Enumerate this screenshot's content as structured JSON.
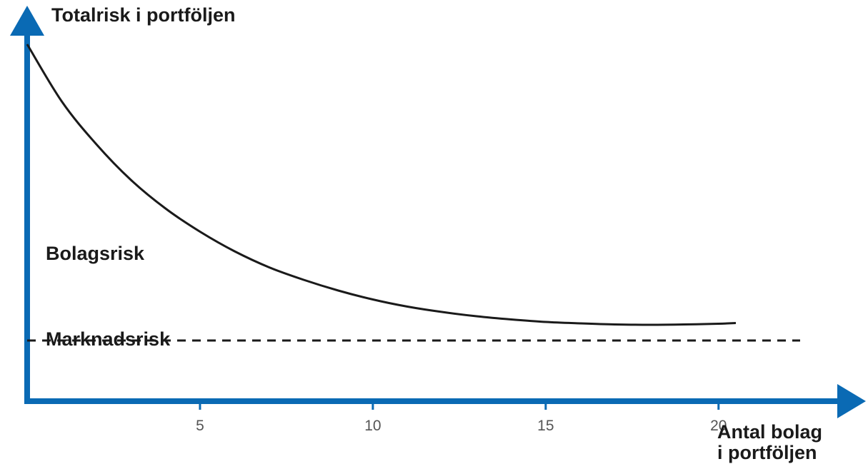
{
  "chart_data": {
    "type": "line",
    "ylabel": "Totalrisk i portföljen",
    "xlabel": [
      "Antal bolag",
      "i portföljen"
    ],
    "xlim": [
      0,
      23.6
    ],
    "ylim": [
      0,
      100
    ],
    "x_ticks": [
      5,
      10,
      15,
      20
    ],
    "y_ticks": [],
    "grid": false,
    "series": [
      {
        "x": [
          0,
          1,
          2,
          3,
          4,
          5,
          6,
          7,
          8,
          9,
          10,
          11,
          12,
          13,
          14,
          15,
          16,
          17,
          18,
          19,
          20,
          20.5
        ],
        "values": [
          100,
          84,
          72,
          62,
          54,
          47.5,
          42,
          37.5,
          34,
          31,
          28.5,
          26.5,
          25,
          23.8,
          22.9,
          22.2,
          21.8,
          21.5,
          21.4,
          21.5,
          21.7,
          21.9
        ]
      }
    ],
    "reference_line": {
      "y": 17,
      "style": "dashed"
    },
    "annotations": [
      {
        "text": "Bolagsrisk",
        "region": "above-dashed-line"
      },
      {
        "text": "Marknadsrisk",
        "region": "below-dashed-line"
      }
    ],
    "colors": {
      "axis": "#0a6ab4",
      "curve": "#1a1a1a",
      "reference": "#1a1a1a"
    }
  }
}
